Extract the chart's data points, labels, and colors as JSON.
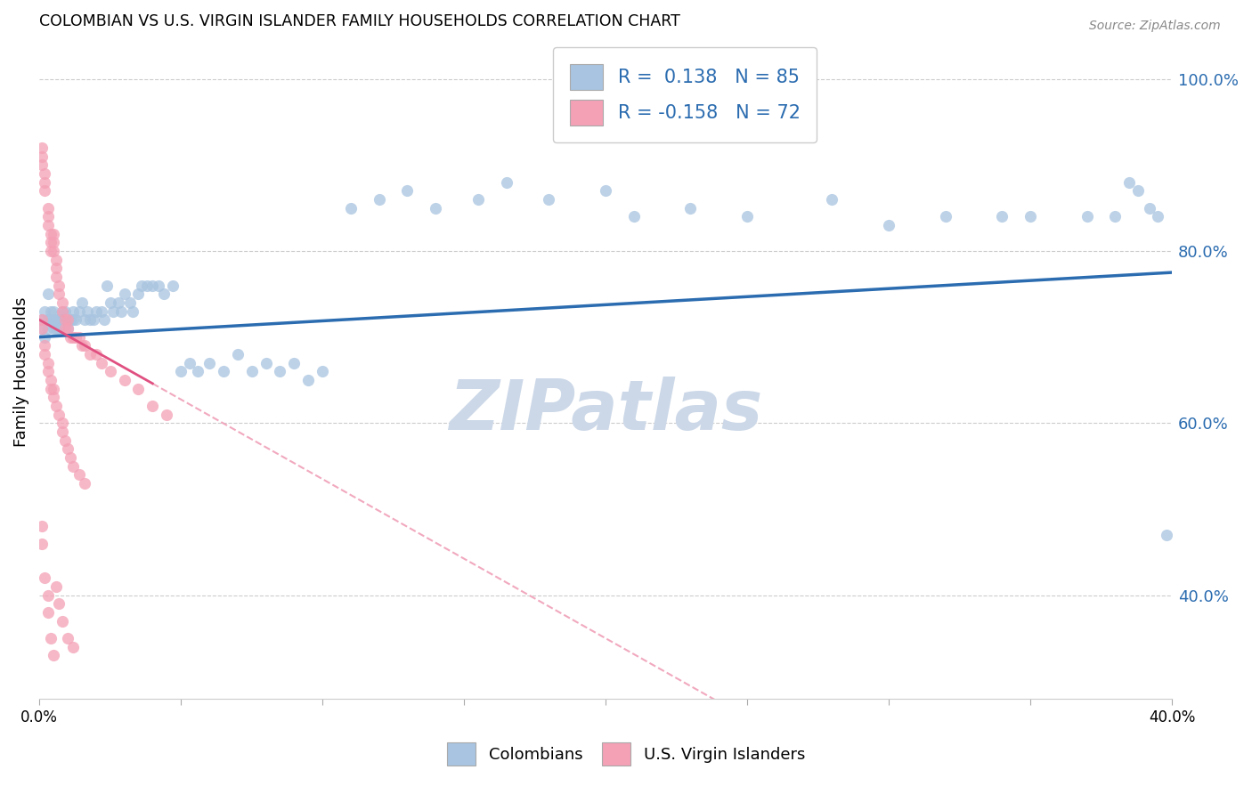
{
  "title": "COLOMBIAN VS U.S. VIRGIN ISLANDER FAMILY HOUSEHOLDS CORRELATION CHART",
  "source": "Source: ZipAtlas.com",
  "ylabel": "Family Households",
  "yticks_labels": [
    "40.0%",
    "60.0%",
    "80.0%",
    "100.0%"
  ],
  "ytick_vals": [
    0.4,
    0.6,
    0.8,
    1.0
  ],
  "xlim": [
    0.0,
    0.4
  ],
  "ylim": [
    0.28,
    1.04
  ],
  "legend_labels": [
    "Colombians",
    "U.S. Virgin Islanders"
  ],
  "colombian_color": "#a8c4e0",
  "virgin_islander_color": "#f4a0b5",
  "colombian_line_color": "#2b6cb0",
  "virgin_islander_line_color": "#f0a0b8",
  "R_colombian": 0.138,
  "N_colombian": 85,
  "R_virgin": -0.158,
  "N_virgin": 72,
  "colombian_x": [
    0.001,
    0.001,
    0.002,
    0.002,
    0.003,
    0.003,
    0.003,
    0.004,
    0.004,
    0.005,
    0.005,
    0.005,
    0.006,
    0.006,
    0.007,
    0.007,
    0.008,
    0.008,
    0.009,
    0.009,
    0.01,
    0.01,
    0.011,
    0.012,
    0.012,
    0.013,
    0.014,
    0.015,
    0.016,
    0.017,
    0.018,
    0.019,
    0.02,
    0.022,
    0.023,
    0.024,
    0.025,
    0.026,
    0.028,
    0.029,
    0.03,
    0.032,
    0.033,
    0.035,
    0.036,
    0.038,
    0.04,
    0.042,
    0.044,
    0.047,
    0.05,
    0.053,
    0.056,
    0.06,
    0.065,
    0.07,
    0.075,
    0.08,
    0.085,
    0.09,
    0.095,
    0.1,
    0.11,
    0.12,
    0.13,
    0.14,
    0.155,
    0.165,
    0.18,
    0.2,
    0.21,
    0.23,
    0.25,
    0.28,
    0.3,
    0.32,
    0.34,
    0.35,
    0.37,
    0.38,
    0.385,
    0.388,
    0.392,
    0.395,
    0.398
  ],
  "colombian_y": [
    0.72,
    0.71,
    0.73,
    0.7,
    0.75,
    0.72,
    0.71,
    0.73,
    0.72,
    0.71,
    0.72,
    0.73,
    0.72,
    0.71,
    0.72,
    0.71,
    0.73,
    0.72,
    0.72,
    0.73,
    0.72,
    0.71,
    0.72,
    0.73,
    0.72,
    0.72,
    0.73,
    0.74,
    0.72,
    0.73,
    0.72,
    0.72,
    0.73,
    0.73,
    0.72,
    0.76,
    0.74,
    0.73,
    0.74,
    0.73,
    0.75,
    0.74,
    0.73,
    0.75,
    0.76,
    0.76,
    0.76,
    0.76,
    0.75,
    0.76,
    0.66,
    0.67,
    0.66,
    0.67,
    0.66,
    0.68,
    0.66,
    0.67,
    0.66,
    0.67,
    0.65,
    0.66,
    0.85,
    0.86,
    0.87,
    0.85,
    0.86,
    0.88,
    0.86,
    0.87,
    0.84,
    0.85,
    0.84,
    0.86,
    0.83,
    0.84,
    0.84,
    0.84,
    0.84,
    0.84,
    0.88,
    0.87,
    0.85,
    0.84,
    0.47
  ],
  "virgin_x": [
    0.001,
    0.001,
    0.001,
    0.002,
    0.002,
    0.002,
    0.003,
    0.003,
    0.003,
    0.004,
    0.004,
    0.004,
    0.005,
    0.005,
    0.005,
    0.006,
    0.006,
    0.006,
    0.007,
    0.007,
    0.008,
    0.008,
    0.009,
    0.009,
    0.01,
    0.01,
    0.011,
    0.012,
    0.013,
    0.014,
    0.015,
    0.016,
    0.018,
    0.02,
    0.022,
    0.025,
    0.03,
    0.035,
    0.04,
    0.045,
    0.001,
    0.001,
    0.002,
    0.002,
    0.003,
    0.003,
    0.004,
    0.004,
    0.005,
    0.005,
    0.006,
    0.007,
    0.008,
    0.008,
    0.009,
    0.01,
    0.011,
    0.012,
    0.014,
    0.016,
    0.001,
    0.001,
    0.002,
    0.003,
    0.003,
    0.004,
    0.005,
    0.006,
    0.007,
    0.008,
    0.01,
    0.012
  ],
  "virgin_y": [
    0.92,
    0.91,
    0.9,
    0.89,
    0.88,
    0.87,
    0.84,
    0.85,
    0.83,
    0.82,
    0.81,
    0.8,
    0.8,
    0.81,
    0.82,
    0.79,
    0.78,
    0.77,
    0.76,
    0.75,
    0.74,
    0.73,
    0.72,
    0.71,
    0.72,
    0.71,
    0.7,
    0.7,
    0.7,
    0.7,
    0.69,
    0.69,
    0.68,
    0.68,
    0.67,
    0.66,
    0.65,
    0.64,
    0.62,
    0.61,
    0.72,
    0.71,
    0.69,
    0.68,
    0.67,
    0.66,
    0.65,
    0.64,
    0.64,
    0.63,
    0.62,
    0.61,
    0.6,
    0.59,
    0.58,
    0.57,
    0.56,
    0.55,
    0.54,
    0.53,
    0.48,
    0.46,
    0.42,
    0.4,
    0.38,
    0.35,
    0.33,
    0.41,
    0.39,
    0.37,
    0.35,
    0.34
  ],
  "watermark": "ZIPatlas",
  "watermark_color": "#ccd8e8"
}
